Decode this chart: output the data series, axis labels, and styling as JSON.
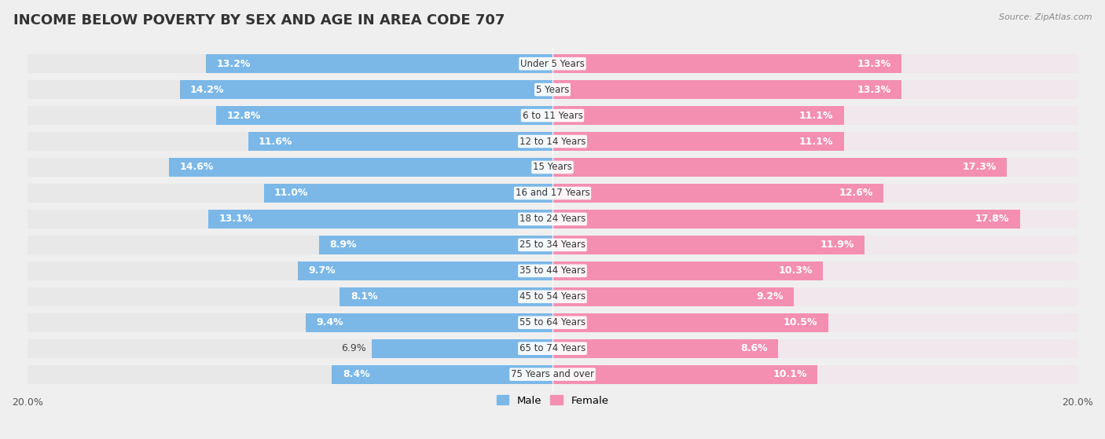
{
  "title": "INCOME BELOW POVERTY BY SEX AND AGE IN AREA CODE 707",
  "source": "Source: ZipAtlas.com",
  "categories": [
    "Under 5 Years",
    "5 Years",
    "6 to 11 Years",
    "12 to 14 Years",
    "15 Years",
    "16 and 17 Years",
    "18 to 24 Years",
    "25 to 34 Years",
    "35 to 44 Years",
    "45 to 54 Years",
    "55 to 64 Years",
    "65 to 74 Years",
    "75 Years and over"
  ],
  "male_values": [
    13.2,
    14.2,
    12.8,
    11.6,
    14.6,
    11.0,
    13.1,
    8.9,
    9.7,
    8.1,
    9.4,
    6.9,
    8.4
  ],
  "female_values": [
    13.3,
    13.3,
    11.1,
    11.1,
    17.3,
    12.6,
    17.8,
    11.9,
    10.3,
    9.2,
    10.5,
    8.6,
    10.1
  ],
  "male_color": "#7BB8E8",
  "female_color": "#F48FB1",
  "male_label": "Male",
  "female_label": "Female",
  "xlim": 20.0,
  "background_color": "#EFEFEF",
  "row_bg_color": "#FFFFFF",
  "row_alt_color": "#F5F5F5",
  "title_fontsize": 13,
  "label_fontsize": 9,
  "tick_fontsize": 9,
  "bar_height": 0.72
}
